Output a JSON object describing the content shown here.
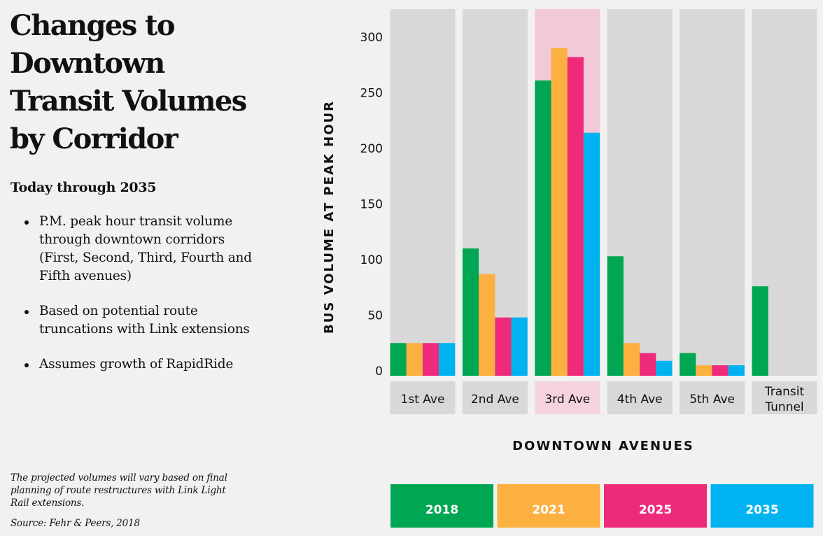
{
  "left_panel": {
    "title_lines": [
      "Changes to",
      "Downtown",
      "Transit Volumes",
      "by Corridor"
    ],
    "subtitle": "Today through 2035",
    "bullets": [
      "P.M. peak hour transit volume through downtown corridors (First, Second, Third, Fourth and Fifth avenues)",
      "Based on potential route truncations with Link extensions",
      "Assumes growth of RapidRide"
    ],
    "note": "The projected volumes will vary based on final planning of route restructures with Link Light Rail extensions.",
    "source": "Source: Fehr & Peers, 2018"
  },
  "colors": {
    "panel": "#d8d8d8",
    "panel_highlight": "#f2c9d8",
    "label_highlight": "#f4d3df",
    "2018": "#00a651",
    "2021": "#fbb040",
    "2025": "#ee2a7b",
    "2035": "#00b3f0"
  },
  "chart_data": {
    "type": "bar",
    "title": "",
    "xlabel": "DOWNTOWN AVENUES",
    "ylabel": "BUS VOLUME AT PEAK HOUR",
    "ylim": [
      0,
      325
    ],
    "yticks": [
      0,
      50,
      100,
      150,
      200,
      250,
      300
    ],
    "categories": [
      [
        "1st Ave"
      ],
      [
        "2nd Ave"
      ],
      [
        "3rd Ave"
      ],
      [
        "4th Ave"
      ],
      [
        "5th Ave"
      ],
      [
        "Transit",
        "Tunnel"
      ]
    ],
    "highlight_category": 2,
    "series": [
      {
        "name": "2018",
        "values": [
          25,
          110,
          261,
          103,
          16,
          76
        ]
      },
      {
        "name": "2021",
        "values": [
          25,
          87,
          290,
          25,
          5,
          null
        ]
      },
      {
        "name": "2025",
        "values": [
          25,
          48,
          282,
          16,
          5,
          null
        ]
      },
      {
        "name": "2035",
        "values": [
          25,
          48,
          214,
          9,
          5,
          null
        ]
      }
    ],
    "legend_position": "bottom"
  }
}
